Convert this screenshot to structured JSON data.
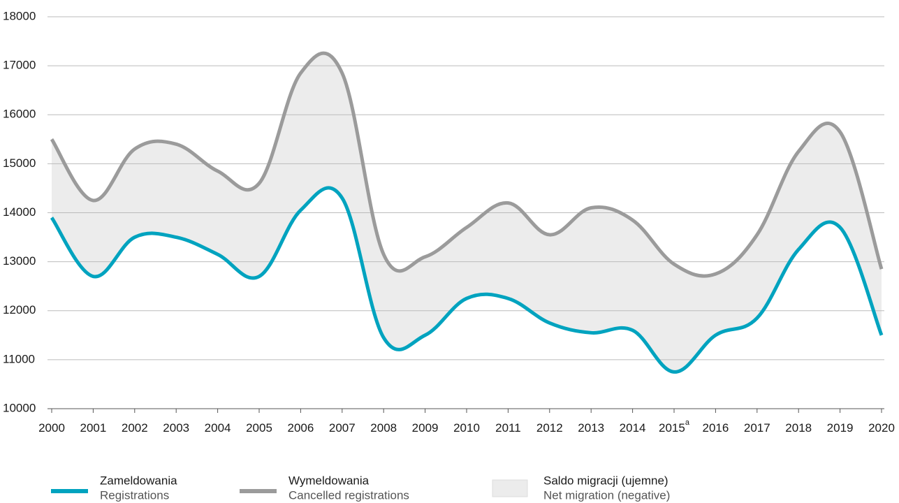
{
  "chart_data": {
    "type": "line",
    "x": [
      2000,
      2001,
      2002,
      2003,
      2004,
      2005,
      2006,
      2007,
      2008,
      2009,
      2010,
      2011,
      2012,
      2013,
      2014,
      2015,
      2016,
      2017,
      2018,
      2019,
      2020
    ],
    "footnote_marks": {
      "2015": "a"
    },
    "series": [
      {
        "name": "Zameldowania",
        "name_en": "Registrations",
        "color": "#00a3bf",
        "values": [
          13900,
          12700,
          13500,
          13500,
          13150,
          12700,
          14050,
          14300,
          11450,
          11500,
          12250,
          12250,
          11750,
          11550,
          11600,
          10750,
          11500,
          11850,
          13250,
          13700,
          11500
        ]
      },
      {
        "name": "Wymeldowania",
        "name_en": "Cancelled registrations",
        "color": "#9b9b9b",
        "values": [
          15500,
          14250,
          15300,
          15400,
          14850,
          14600,
          16850,
          16850,
          13150,
          13100,
          13700,
          14200,
          13550,
          14100,
          13850,
          12950,
          12750,
          13550,
          15250,
          15650,
          12850
        ]
      }
    ],
    "area": {
      "name": "Saldo migracji (ujemne)",
      "name_en": "Net migration (negative)",
      "color": "#ececec"
    },
    "xlim": [
      2000,
      2020
    ],
    "xticks": [
      2000,
      2001,
      2002,
      2003,
      2004,
      2005,
      2006,
      2007,
      2008,
      2009,
      2010,
      2011,
      2012,
      2013,
      2014,
      2015,
      2016,
      2017,
      2018,
      2019,
      2020
    ],
    "ylim": [
      10000,
      18000
    ],
    "yticks": [
      10000,
      11000,
      12000,
      13000,
      14000,
      15000,
      16000,
      17000,
      18000
    ],
    "grid": true
  }
}
